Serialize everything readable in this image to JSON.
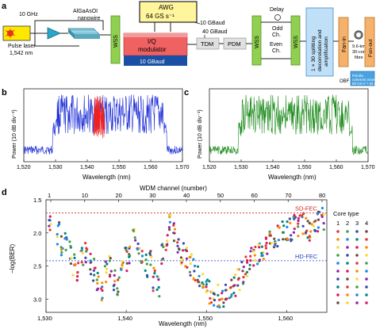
{
  "panel_labels": {
    "a": "a",
    "b": "b",
    "c": "c",
    "d": "d"
  },
  "setup": {
    "laser_label_1": "Pulse laser",
    "laser_label_2": "1,542 nm",
    "rate_label": "10 GHz",
    "nanowire_label_1": "AlGaAsOI",
    "nanowire_label_2": "nanowire",
    "wss": "WSS",
    "awg_label_1": "AWG",
    "awg_label_2": "64 GS s⁻¹",
    "gbaud_10_a": "10 GBaud",
    "gbaud_40": "40 GBaud",
    "iq_label_1": "I/Q",
    "iq_label_2": "modulator",
    "gbaud_10_b": "10 GBaud",
    "tdm": "TDM",
    "pdm": "PDM",
    "delay": "Delay",
    "odd_1": "Odd",
    "odd_2": "Ch.",
    "even_1": "Even",
    "even_2": "Ch.",
    "splitting": [
      "1 × 30 splitting",
      "decorrelation and",
      "amplification"
    ],
    "fanin": "Fan-in",
    "fibre_1": "9.6-km",
    "fibre_2": "30-core",
    "fibre_3": "fibre",
    "fanout": "Fan-out",
    "obf": "OBF",
    "receiver": [
      "Pol-div.",
      "coherent",
      "receiver",
      "80 GS s⁻¹",
      "32 GHz"
    ]
  },
  "spectrum_b": {
    "ylabel": "Power (10 dB div⁻¹)",
    "xlabel": "Wavelength (nm)",
    "xticks": [
      "1,520",
      "1,530",
      "1,540",
      "1,550",
      "1,560",
      "1,570"
    ],
    "colors": {
      "main": "#1f2fd6",
      "highlight": "#ef2020"
    }
  },
  "spectrum_c": {
    "ylabel": "Power (10 dB div⁻¹)",
    "xlabel": "Wavelength (nm)",
    "xticks": [
      "1,520",
      "1,530",
      "1,540",
      "1,550",
      "1,560",
      "1,570"
    ],
    "colors": {
      "main": "#1f8c1f"
    }
  },
  "chart_data": {
    "type": "scatter",
    "top_xlabel": "WDM channel (number)",
    "top_xticks": [
      "1",
      "10",
      "20",
      "30",
      "40",
      "50",
      "60",
      "70",
      "80"
    ],
    "xlabel": "Wavelength (nm)",
    "xticks": [
      "1,530",
      "1,540",
      "1,550",
      "1,560"
    ],
    "xlim": [
      1530,
      1565
    ],
    "ylabel": "−log(BER)",
    "yticks": [
      "1.5",
      "2.0",
      "2.5",
      "3.0"
    ],
    "ylim": [
      1.5,
      3.2
    ],
    "thresholds": [
      {
        "name": "SD-FEC",
        "value": 1.7,
        "color": "#d42020"
      },
      {
        "name": "HD-FEC",
        "value": 2.42,
        "color": "#2040c0"
      }
    ],
    "legend_title": "Core type",
    "legend_columns": [
      "1",
      "2",
      "3",
      "4"
    ],
    "colors": [
      "#e53935",
      "#fb8c00",
      "#fdd835",
      "#43a047",
      "#1e88e5",
      "#8e24aa",
      "#3949ab",
      "#00897b",
      "#d81b60",
      "#6d4c41"
    ],
    "x": [
      1530.5,
      1531.5,
      1532,
      1532.5,
      1533,
      1533.5,
      1534,
      1534.5,
      1535,
      1535.5,
      1536,
      1536.5,
      1537,
      1537.5,
      1538,
      1538.5,
      1539,
      1539.5,
      1540,
      1540.5,
      1541,
      1541.5,
      1542,
      1542.5,
      1543,
      1543.5,
      1544,
      1544.5,
      1545,
      1545.5,
      1546,
      1546.5,
      1547,
      1547.5,
      1548,
      1548.5,
      1549,
      1549.5,
      1550,
      1550.5,
      1551,
      1551.5,
      1552,
      1552.5,
      1553,
      1553.5,
      1554,
      1554.5,
      1555,
      1555.5,
      1556,
      1556.5,
      1557,
      1557.5,
      1558,
      1558.5,
      1559,
      1559.5,
      1560,
      1560.5,
      1561,
      1561.5,
      1562,
      1562.5,
      1563,
      1563.5,
      1564,
      1564.5
    ],
    "y": [
      1.9,
      2.0,
      2.2,
      2.1,
      2.3,
      2.5,
      2.6,
      2.4,
      2.3,
      2.45,
      2.55,
      2.7,
      2.9,
      2.6,
      2.5,
      2.7,
      2.8,
      2.5,
      2.4,
      2.3,
      2.1,
      2.25,
      2.35,
      2.5,
      2.45,
      2.7,
      2.8,
      2.3,
      2.1,
      1.85,
      2.0,
      2.15,
      2.3,
      2.4,
      2.5,
      2.55,
      2.65,
      2.75,
      2.85,
      2.9,
      3.0,
      2.95,
      3.05,
      2.95,
      2.85,
      2.8,
      2.7,
      2.6,
      2.5,
      2.4,
      2.35,
      2.3,
      2.25,
      2.2,
      2.15,
      2.1,
      2.05,
      2.0,
      2.0,
      1.95,
      1.9,
      1.9,
      1.85,
      1.9,
      1.95,
      1.9,
      1.85,
      1.8
    ]
  }
}
